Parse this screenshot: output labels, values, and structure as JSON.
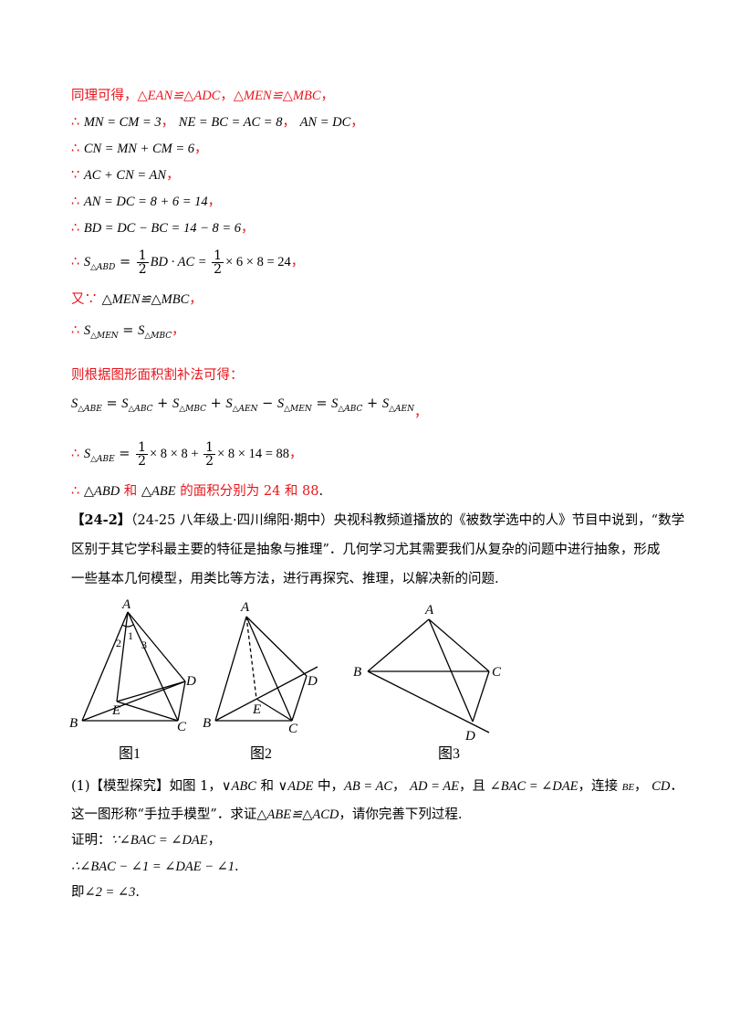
{
  "lines": [
    {
      "pre": "同理可得，",
      "math": "△EAN≌△ADC",
      "mid": "，",
      "math2": "△MEN≌△MBC",
      "post": "，"
    },
    {
      "pre": "∴ ",
      "math": "MN = CM = 3",
      "mid": "， ",
      "math2": "NE = BC = AC = 8",
      "mid2": "， ",
      "math3": "AN = DC",
      "post": "，"
    },
    {
      "pre": "∴ ",
      "math": "CN = MN + CM = 6",
      "post": "，"
    },
    {
      "pre": "∵ ",
      "math": "AC + CN = AN",
      "post": "，"
    },
    {
      "pre": "∴ ",
      "math": "AN = DC = 8 + 6 = 14",
      "post": "，"
    },
    {
      "pre": "∴ ",
      "math": "BD = DC − BC = 14 − 8 = 6",
      "post": "，"
    }
  ],
  "area_abd": {
    "pre": "∴ ",
    "S": "S",
    "sub": "△ABD",
    "eq1": " = ",
    "f_num": "1",
    "f_den": "2",
    "mid": "BD · AC = ",
    "f2_num": "1",
    "f2_den": "2",
    "end": "× 6 × 8 = 24",
    "post": "，"
  },
  "also": {
    "pre": "又∵ ",
    "math": "△MEN≌△MBC",
    "post": "，"
  },
  "equal_area": {
    "pre": "∴ ",
    "s1": "S",
    "sub1": "△MEN",
    "eq": " = ",
    "s2": "S",
    "sub2": "△MBC",
    "post": "，"
  },
  "cut_fill": "则根据图形面积割补法可得：",
  "area_formula": {
    "terms": [
      {
        "s": "S",
        "sub": "△ABE",
        "op": " = "
      },
      {
        "s": "S",
        "sub": "△ABC",
        "op": " + "
      },
      {
        "s": "S",
        "sub": "△MBC",
        "op": " + "
      },
      {
        "s": "S",
        "sub": "△AEN",
        "op": " − "
      },
      {
        "s": "S",
        "sub": "△MEN",
        "op": " = "
      },
      {
        "s": "S",
        "sub": "△ABC",
        "op": " + "
      },
      {
        "s": "S",
        "sub": "△AEN",
        "op": ""
      }
    ],
    "post": "，"
  },
  "area_abe": {
    "pre": "∴ ",
    "S": "S",
    "sub": "△ABE",
    "eq": " = ",
    "f_num": "1",
    "f_den": "2",
    "mid": "× 8 × 8 + ",
    "f2_num": "1",
    "f2_den": "2",
    "end": "× 8 × 14 = 88",
    "post": "，"
  },
  "conclusion": {
    "pre": "∴ ",
    "t1": "△ABD",
    "and": " 和 ",
    "t2": "△ABE",
    "text": " 的面积分别为 24 和 88",
    "post": "."
  },
  "problem": {
    "tag": "【24-2】",
    "line1": "（24-25 八年级上·四川绵阳·期中）央视科教频道播放的《被数学选中的人》节目中说到，“数学",
    "line2": "区别于其它学科最主要的特征是抽象与推理”．几何学习尤其需要我们从复杂的问题中进行抽象，形成",
    "line3": "一些基本几何模型，用类比等方法，进行再探究、推理，以解决新的问题."
  },
  "figures": {
    "fig1": {
      "caption": "图1",
      "labels": {
        "A": "A",
        "B": "B",
        "C": "C",
        "D": "D",
        "E": "E",
        "a1": "1",
        "a2": "2",
        "a3": "3"
      }
    },
    "fig2": {
      "caption": "图2",
      "labels": {
        "A": "A",
        "B": "B",
        "C": "C",
        "D": "D",
        "E": "E"
      }
    },
    "fig3": {
      "caption": "图3",
      "labels": {
        "A": "A",
        "B": "B",
        "C": "C",
        "D": "D"
      }
    }
  },
  "part1": {
    "line1_pre": "(1)【模型探究】如图 1，",
    "tri1": "∨ABC",
    "and": " 和 ",
    "tri2": "∨ADE",
    "in": " 中，",
    "c1": "AB = AC",
    "sep": "， ",
    "c2": "AD = AE",
    "and2": "，且 ",
    "c3": "∠BAC = ∠DAE",
    "join": "，连接 ",
    "s1": "BE",
    "s2": "CD",
    "dot": "．",
    "line2_pre": "这一图形称“手拉手模型”．求证",
    "goal": "△ABE≌△ACD",
    "line2_post": "，请你完善下列过程.",
    "proof_label": "证明：",
    "proof1": "∵∠BAC = ∠DAE",
    "proof1_post": "，",
    "proof2": "∴∠BAC − ∠1 = ∠DAE − ∠1",
    "proof2_post": ".",
    "proof3_pre": "即",
    "proof3": "∠2 = ∠3",
    "proof3_post": "."
  }
}
